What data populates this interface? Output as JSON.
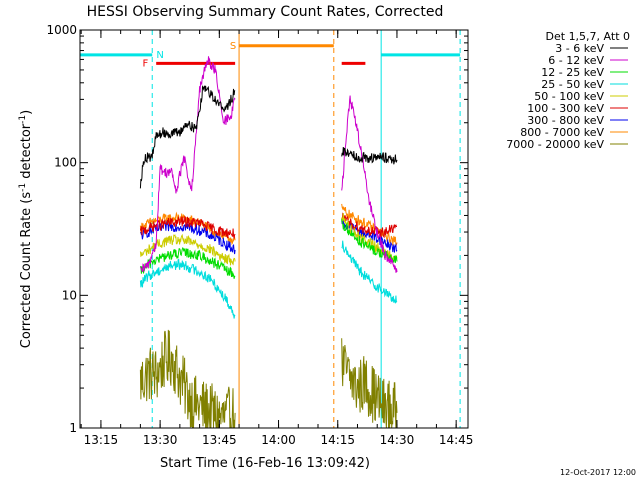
{
  "chart_data": {
    "type": "line",
    "title": "HESSI Observing Summary Count Rates, Corrected",
    "xlabel": "Start Time (16-Feb-16 13:09:42)",
    "ylabel_main": "Corrected Count Rate (s",
    "ylabel_sup1": "-1",
    "ylabel_mid": " detector",
    "ylabel_sup2": "-1",
    "ylabel_end": ")",
    "yscale": "log",
    "xlim": [
      "13:09:42",
      "14:48:00"
    ],
    "ylim": [
      1,
      1000
    ],
    "x_ticks": [
      "13:15",
      "13:30",
      "13:45",
      "14:00",
      "14:15",
      "14:30",
      "14:45"
    ],
    "y_ticks": [
      "1",
      "10",
      "100",
      "1000"
    ],
    "footer_date": "12-Oct-2017 12:00",
    "legend_title": "Det 1,5,7, Att 0",
    "legend_position": "right",
    "flag_labels": {
      "n": "N",
      "f": "F",
      "s": "S"
    },
    "series": [
      {
        "name": "3 - 6 keV",
        "color": "#000000",
        "points": [
          [
            "13:25",
            70
          ],
          [
            "13:26",
            110
          ],
          [
            "13:28",
            110
          ],
          [
            "13:29",
            160
          ],
          [
            "13:31",
            170
          ],
          [
            "13:33",
            165
          ],
          [
            "13:35",
            170
          ],
          [
            "13:37",
            200
          ],
          [
            "13:39",
            175
          ],
          [
            "13:41",
            380
          ],
          [
            "13:43",
            330
          ],
          [
            "13:45",
            270
          ],
          [
            "13:47",
            260
          ],
          [
            "13:49",
            350
          ],
          [
            "14:16",
            120
          ],
          [
            "14:18",
            120
          ],
          [
            "14:20",
            110
          ],
          [
            "14:22",
            110
          ],
          [
            "14:24",
            108
          ],
          [
            "14:26",
            110
          ],
          [
            "14:28",
            108
          ],
          [
            "14:30",
            105
          ]
        ]
      },
      {
        "name": "6 - 12 keV",
        "color": "#cc00cc",
        "points": [
          [
            "13:25",
            15
          ],
          [
            "13:27",
            17
          ],
          [
            "13:29",
            25
          ],
          [
            "13:30",
            90
          ],
          [
            "13:31",
            85
          ],
          [
            "13:33",
            85
          ],
          [
            "13:34",
            60
          ],
          [
            "13:36",
            110
          ],
          [
            "13:38",
            60
          ],
          [
            "13:40",
            350
          ],
          [
            "13:42",
            600
          ],
          [
            "13:44",
            500
          ],
          [
            "13:46",
            200
          ],
          [
            "13:48",
            230
          ],
          [
            "13:49",
            300
          ],
          [
            "14:16",
            60
          ],
          [
            "14:18",
            300
          ],
          [
            "14:19",
            250
          ],
          [
            "14:21",
            120
          ],
          [
            "14:23",
            50
          ],
          [
            "14:25",
            30
          ],
          [
            "14:27",
            20
          ],
          [
            "14:29",
            18
          ],
          [
            "14:30",
            15
          ]
        ]
      },
      {
        "name": "12 - 25 keV",
        "color": "#00dd00",
        "points": [
          [
            "13:25",
            15
          ],
          [
            "13:28",
            18
          ],
          [
            "13:32",
            20
          ],
          [
            "13:36",
            21
          ],
          [
            "13:40",
            20
          ],
          [
            "13:43",
            18
          ],
          [
            "13:46",
            16
          ],
          [
            "13:49",
            14
          ],
          [
            "14:16",
            35
          ],
          [
            "14:18",
            30
          ],
          [
            "14:21",
            25
          ],
          [
            "14:24",
            22
          ],
          [
            "14:27",
            20
          ],
          [
            "14:30",
            18
          ]
        ]
      },
      {
        "name": "25 - 50 keV",
        "color": "#00dddd",
        "points": [
          [
            "13:25",
            12
          ],
          [
            "13:27",
            14
          ],
          [
            "13:29",
            15
          ],
          [
            "13:33",
            17
          ],
          [
            "13:36",
            17
          ],
          [
            "13:40",
            15
          ],
          [
            "13:43",
            13
          ],
          [
            "13:45",
            11
          ],
          [
            "13:47",
            9
          ],
          [
            "13:49",
            7
          ],
          [
            "14:16",
            25
          ],
          [
            "14:18",
            20
          ],
          [
            "14:20",
            16
          ],
          [
            "14:23",
            13
          ],
          [
            "14:26",
            11
          ],
          [
            "14:28",
            10
          ],
          [
            "14:30",
            9
          ]
        ]
      },
      {
        "name": "50 - 100 keV",
        "color": "#cccc00",
        "points": [
          [
            "13:25",
            20
          ],
          [
            "13:28",
            23
          ],
          [
            "13:32",
            26
          ],
          [
            "13:36",
            26
          ],
          [
            "13:40",
            24
          ],
          [
            "13:43",
            22
          ],
          [
            "13:46",
            19
          ],
          [
            "13:49",
            18
          ],
          [
            "14:16",
            40
          ],
          [
            "14:18",
            32
          ],
          [
            "14:21",
            27
          ],
          [
            "14:24",
            24
          ],
          [
            "14:27",
            21
          ],
          [
            "14:30",
            19
          ]
        ]
      },
      {
        "name": "100 - 300 keV",
        "color": "#dd0000",
        "points": [
          [
            "13:25",
            30
          ],
          [
            "13:28",
            33
          ],
          [
            "13:32",
            35
          ],
          [
            "13:36",
            36
          ],
          [
            "13:40",
            35
          ],
          [
            "13:43",
            32
          ],
          [
            "13:46",
            30
          ],
          [
            "13:49",
            29
          ],
          [
            "14:16",
            38
          ],
          [
            "14:18",
            35
          ],
          [
            "14:21",
            32
          ],
          [
            "14:24",
            30
          ],
          [
            "14:27",
            30
          ],
          [
            "14:30",
            33
          ]
        ]
      },
      {
        "name": "300 - 800 keV",
        "color": "#0000ee",
        "points": [
          [
            "13:25",
            28
          ],
          [
            "13:28",
            31
          ],
          [
            "13:32",
            33
          ],
          [
            "13:36",
            33
          ],
          [
            "13:40",
            31
          ],
          [
            "13:43",
            28
          ],
          [
            "13:46",
            25
          ],
          [
            "13:49",
            22
          ],
          [
            "14:16",
            35
          ],
          [
            "14:18",
            33
          ],
          [
            "14:21",
            30
          ],
          [
            "14:24",
            28
          ],
          [
            "14:27",
            25
          ],
          [
            "14:30",
            22
          ]
        ]
      },
      {
        "name": "800 - 7000 keV",
        "color": "#ff8800",
        "points": [
          [
            "13:25",
            32
          ],
          [
            "13:28",
            36
          ],
          [
            "13:32",
            38
          ],
          [
            "13:36",
            38
          ],
          [
            "13:40",
            35
          ],
          [
            "13:43",
            31
          ],
          [
            "13:46",
            28
          ],
          [
            "13:49",
            26
          ],
          [
            "14:16",
            45
          ],
          [
            "14:18",
            40
          ],
          [
            "14:21",
            36
          ],
          [
            "14:24",
            32
          ],
          [
            "14:27",
            28
          ],
          [
            "14:30",
            25
          ]
        ]
      },
      {
        "name": "7000 - 20000 keV",
        "color": "#808000",
        "points": [
          [
            "13:25",
            2.2
          ],
          [
            "13:27",
            2.6
          ],
          [
            "13:29",
            2.5
          ],
          [
            "13:31",
            3.2
          ],
          [
            "13:33",
            3.4
          ],
          [
            "13:35",
            2.4
          ],
          [
            "13:37",
            1.8
          ],
          [
            "13:39",
            1.5
          ],
          [
            "13:41",
            1.4
          ],
          [
            "13:43",
            1.3
          ],
          [
            "13:45",
            1.2
          ],
          [
            "13:47",
            1.2
          ],
          [
            "13:49",
            1.3
          ],
          [
            "14:16",
            3.0
          ],
          [
            "14:18",
            2.4
          ],
          [
            "14:20",
            2.0
          ],
          [
            "14:22",
            2.2
          ],
          [
            "14:24",
            1.8
          ],
          [
            "14:26",
            1.5
          ],
          [
            "14:28",
            1.4
          ],
          [
            "14:30",
            1.3
          ]
        ]
      }
    ],
    "flag_bars": [
      {
        "label": "night_early",
        "color": "#00e5e5",
        "start": "13:09:42",
        "end": "13:28:00",
        "level": 650
      },
      {
        "label": "flare_F",
        "color": "#ee0000",
        "start": "13:29:00",
        "end": "13:49:00",
        "level": 560
      },
      {
        "label": "saa_S",
        "color": "#ff8800",
        "start": "13:50:00",
        "end": "14:14:00",
        "level": 760
      },
      {
        "label": "flare_F2",
        "color": "#ee0000",
        "start": "14:16:00",
        "end": "14:22:00",
        "level": 560
      },
      {
        "label": "night_late",
        "color": "#00e5e5",
        "start": "14:26:00",
        "end": "14:46:00",
        "level": 650
      }
    ],
    "vlines": [
      {
        "time": "13:09:42",
        "color": "#00e5e5",
        "style": "solid"
      },
      {
        "time": "13:28:00",
        "color": "#00e5e5",
        "style": "dashed"
      },
      {
        "time": "13:50:00",
        "color": "#ff8800",
        "style": "solid"
      },
      {
        "time": "14:14:00",
        "color": "#ff8800",
        "style": "dashed"
      },
      {
        "time": "14:26:00",
        "color": "#00e5e5",
        "style": "solid"
      },
      {
        "time": "14:46:00",
        "color": "#00e5e5",
        "style": "dashed"
      }
    ]
  }
}
